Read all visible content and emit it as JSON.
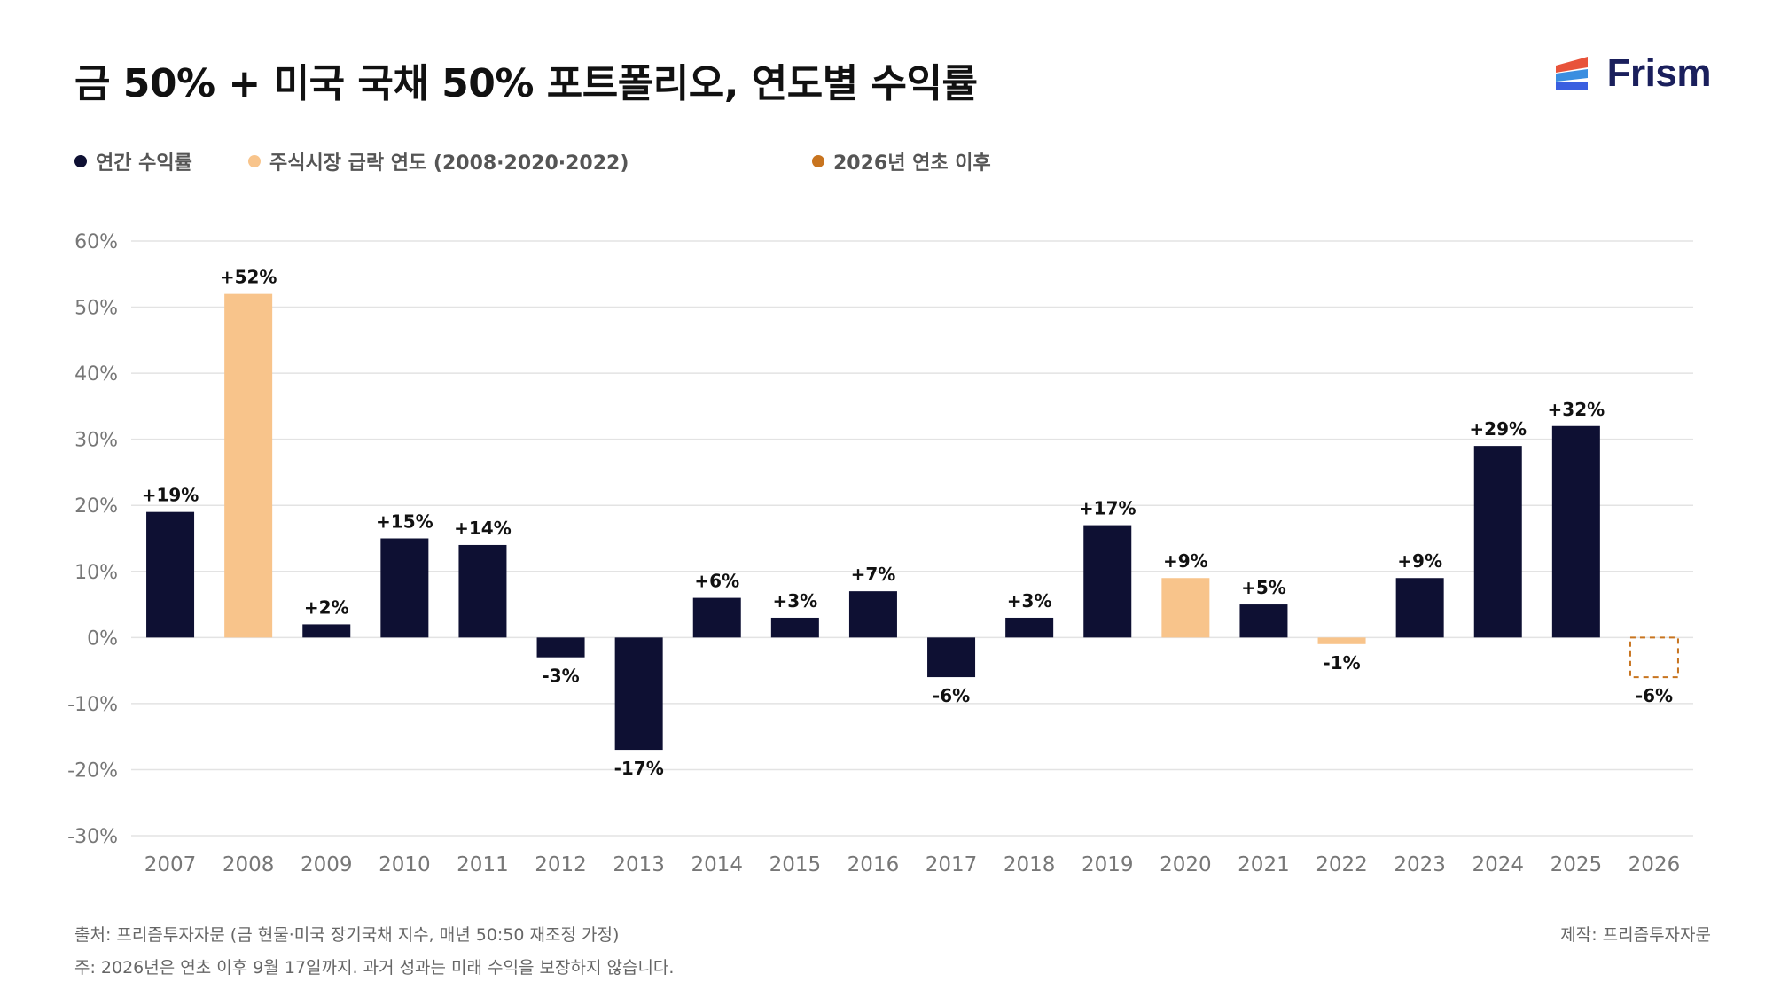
{
  "title": "금 50% + 미국 국채 50% 포트폴리오, 연도별 수익률",
  "brand": {
    "name": "Frism",
    "colors": {
      "text": "#1a1f5c",
      "red": "#e8533a",
      "blue": "#3a6fe0",
      "navy": "#1a1f5c"
    }
  },
  "legend": [
    {
      "label": "연간 수익률",
      "color": "#0e1033"
    },
    {
      "label": "주식시장 급락 연도 (2008·2020·2022)",
      "color": "#f8c48b"
    },
    {
      "label": "2026년 연초 이후",
      "color": "#c8741f"
    }
  ],
  "colors": {
    "normal": "#0e1033",
    "crash": "#f8c48b",
    "ytd": "#c8741f",
    "grid": "#e3e3e3",
    "axis_text": "#777777"
  },
  "chart_data": {
    "type": "bar",
    "categories": [
      "2007",
      "2008",
      "2009",
      "2010",
      "2011",
      "2012",
      "2013",
      "2014",
      "2015",
      "2016",
      "2017",
      "2018",
      "2019",
      "2020",
      "2021",
      "2022",
      "2023",
      "2024",
      "2025",
      "2026"
    ],
    "values": [
      19,
      52,
      2,
      15,
      14,
      -3,
      -17,
      6,
      3,
      7,
      -6,
      3,
      17,
      9,
      5,
      -1,
      9,
      29,
      32,
      -6
    ],
    "value_labels": [
      "+19%",
      "+52%",
      "+2%",
      "+15%",
      "+14%",
      "-3%",
      "-17%",
      "+6%",
      "+3%",
      "+7%",
      "-6%",
      "+3%",
      "+17%",
      "+9%",
      "+5%",
      "-1%",
      "+9%",
      "+29%",
      "+32%",
      "-6%"
    ],
    "bar_kinds": [
      "normal",
      "crash",
      "normal",
      "normal",
      "normal",
      "normal",
      "normal",
      "normal",
      "normal",
      "normal",
      "normal",
      "normal",
      "normal",
      "crash",
      "normal",
      "crash",
      "normal",
      "normal",
      "normal",
      "ytd"
    ],
    "ylim": [
      -30,
      60
    ],
    "yticks": [
      60,
      50,
      40,
      30,
      20,
      10,
      0,
      -10,
      -20,
      -30
    ],
    "ytick_labels": [
      "60%",
      "50%",
      "40%",
      "30%",
      "20%",
      "10%",
      "0%",
      "-10%",
      "-20%",
      "-30%"
    ],
    "grid": true,
    "legend_position": "top-left"
  },
  "footer": {
    "source": "출처: 프리즘투자자문 (금 현물·미국 장기국채 지수, 매년 50:50 재조정 가정)",
    "note": "주: 2026년은 연초 이후 9월 17일까지. 과거 성과는 미래 수익을 보장하지 않습니다.",
    "credit": "제작: 프리즘투자자문"
  }
}
